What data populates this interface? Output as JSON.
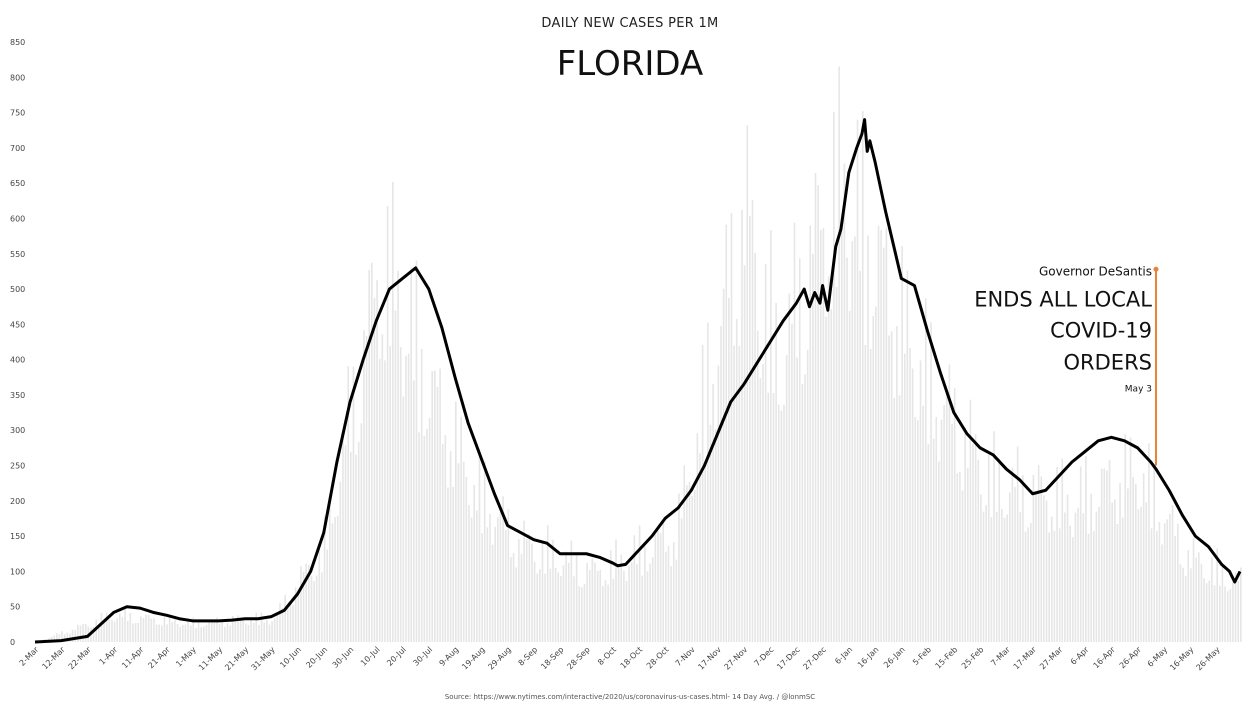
{
  "chart_data": {
    "type": "line",
    "subtitle": "DAILY NEW CASES PER 1M",
    "title": "FLORIDA",
    "source": "Source: https://www.nytimes.com/interactive/2020/us/coronavirus-us-cases.html- 14 Day Avg. / @lonmSC",
    "ylim": [
      0,
      850
    ],
    "yticks": [
      0,
      50,
      100,
      150,
      200,
      250,
      300,
      350,
      400,
      450,
      500,
      550,
      600,
      650,
      700,
      750,
      800,
      850
    ],
    "x_start": "2020-03-02",
    "x_end": "2021-06-04",
    "xticks": [
      "2-Mar",
      "12-Mar",
      "22-Mar",
      "1-Apr",
      "11-Apr",
      "21-Apr",
      "1-May",
      "11-May",
      "21-May",
      "31-May",
      "10-Jun",
      "20-Jun",
      "30-Jun",
      "10-Jul",
      "20-Jul",
      "30-Jul",
      "9-Aug",
      "19-Aug",
      "29-Aug",
      "8-Sep",
      "18-Sep",
      "28-Sep",
      "8-Oct",
      "18-Oct",
      "28-Oct",
      "7-Nov",
      "17-Nov",
      "27-Nov",
      "7-Dec",
      "17-Dec",
      "27-Dec",
      "6-Jan",
      "16-Jan",
      "26-Jan",
      "5-Feb",
      "15-Feb",
      "25-Feb",
      "7-Mar",
      "17-Mar",
      "27-Mar",
      "6-Apr",
      "16-Apr",
      "26-Apr",
      "6-May",
      "16-May",
      "26-May"
    ],
    "series": [
      {
        "type": "line",
        "color": "#000000",
        "x": [
          "2020-03-02",
          "2020-03-12",
          "2020-03-22",
          "2020-03-27",
          "2020-04-01",
          "2020-04-06",
          "2020-04-11",
          "2020-04-16",
          "2020-04-21",
          "2020-04-26",
          "2020-05-01",
          "2020-05-06",
          "2020-05-11",
          "2020-05-16",
          "2020-05-21",
          "2020-05-26",
          "2020-05-31",
          "2020-06-05",
          "2020-06-10",
          "2020-06-15",
          "2020-06-20",
          "2020-06-25",
          "2020-06-30",
          "2020-07-05",
          "2020-07-10",
          "2020-07-15",
          "2020-07-20",
          "2020-07-25",
          "2020-07-30",
          "2020-08-04",
          "2020-08-09",
          "2020-08-14",
          "2020-08-19",
          "2020-08-24",
          "2020-08-29",
          "2020-09-03",
          "2020-09-08",
          "2020-09-13",
          "2020-09-18",
          "2020-09-23",
          "2020-09-28",
          "2020-10-03",
          "2020-10-08",
          "2020-10-10",
          "2020-10-13",
          "2020-10-18",
          "2020-10-23",
          "2020-10-28",
          "2020-11-02",
          "2020-11-07",
          "2020-11-12",
          "2020-11-17",
          "2020-11-22",
          "2020-11-25",
          "2020-11-27",
          "2020-12-02",
          "2020-12-07",
          "2020-12-12",
          "2020-12-17",
          "2020-12-20",
          "2020-12-22",
          "2020-12-24",
          "2020-12-26",
          "2020-12-27",
          "2020-12-29",
          "2021-01-01",
          "2021-01-03",
          "2021-01-06",
          "2021-01-09",
          "2021-01-11",
          "2021-01-12",
          "2021-01-13",
          "2021-01-14",
          "2021-01-16",
          "2021-01-20",
          "2021-01-26",
          "2021-01-31",
          "2021-02-05",
          "2021-02-10",
          "2021-02-15",
          "2021-02-20",
          "2021-02-25",
          "2021-03-02",
          "2021-03-07",
          "2021-03-12",
          "2021-03-17",
          "2021-03-22",
          "2021-03-27",
          "2021-04-01",
          "2021-04-06",
          "2021-04-11",
          "2021-04-16",
          "2021-04-21",
          "2021-04-26",
          "2021-05-01",
          "2021-05-03",
          "2021-05-08",
          "2021-05-13",
          "2021-05-18",
          "2021-05-23",
          "2021-05-28",
          "2021-05-31",
          "2021-06-02",
          "2021-06-04"
        ],
        "values": [
          0,
          2,
          8,
          25,
          42,
          50,
          48,
          42,
          38,
          33,
          30,
          30,
          30,
          31,
          33,
          33,
          36,
          45,
          68,
          100,
          155,
          255,
          340,
          400,
          455,
          500,
          515,
          530,
          500,
          445,
          375,
          310,
          260,
          210,
          165,
          155,
          145,
          140,
          125,
          125,
          125,
          120,
          112,
          108,
          110,
          130,
          150,
          175,
          190,
          215,
          250,
          295,
          340,
          355,
          365,
          395,
          425,
          455,
          480,
          500,
          475,
          495,
          480,
          505,
          470,
          560,
          585,
          665,
          700,
          720,
          740,
          695,
          710,
          680,
          610,
          515,
          505,
          440,
          380,
          325,
          295,
          275,
          265,
          245,
          230,
          210,
          215,
          235,
          255,
          270,
          285,
          290,
          285,
          275,
          255,
          245,
          215,
          180,
          150,
          135,
          110,
          100,
          85,
          100
        ]
      },
      {
        "type": "bar",
        "name": "",
        "color": "#e6e6e6",
        "note": "daily values drawn as faint background bars",
        "x": [
          "2020-03-02",
          "2020-04-01",
          "2020-05-01",
          "2020-06-01",
          "2020-06-20",
          "2020-07-01",
          "2020-07-12",
          "2020-07-20",
          "2020-08-01",
          "2020-08-15",
          "2020-09-01",
          "2020-10-01",
          "2020-11-01",
          "2020-11-27",
          "2020-12-10",
          "2020-12-28",
          "2021-01-05",
          "2021-01-15",
          "2021-02-01",
          "2021-03-01",
          "2021-04-01",
          "2021-04-26",
          "2021-05-15",
          "2021-06-04"
        ],
        "values": [
          0,
          50,
          35,
          45,
          180,
          450,
          710,
          620,
          450,
          300,
          190,
          130,
          200,
          800,
          520,
          800,
          850,
          720,
          520,
          300,
          260,
          320,
          160,
          110
        ]
      }
    ],
    "annotation": {
      "date": "2021-05-03",
      "value": 250,
      "top_value": 528,
      "color": "#e8843a",
      "line1": "Governor DeSantis",
      "line2": "ENDS ALL LOCAL",
      "line3": "COVID-19",
      "line4": "ORDERS",
      "line5": "May 3"
    }
  }
}
